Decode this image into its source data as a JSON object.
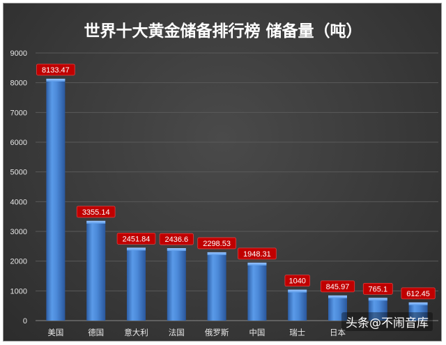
{
  "chart_data": {
    "type": "bar",
    "title": "世界十大黄金储备排行榜 储备量（吨）",
    "categories": [
      "美国",
      "德国",
      "意大利",
      "法国",
      "俄罗斯",
      "中国",
      "瑞士",
      "日本",
      "",
      ""
    ],
    "values": [
      8133.47,
      3355.14,
      2451.84,
      2436.6,
      2298.53,
      1948.31,
      1040,
      845.97,
      765.1,
      612.45
    ],
    "data_labels": [
      "8133.47",
      "3355.14",
      "2451.84",
      "2436.6",
      "2298.53",
      "1948.31",
      "1040",
      "845.97",
      "765.1",
      "612.45"
    ],
    "xlabel": "",
    "ylabel": "",
    "ylim": [
      0,
      9000
    ],
    "yticks": [
      "0",
      "1000",
      "2000",
      "3000",
      "4000",
      "5000",
      "6000",
      "7000",
      "8000",
      "9000"
    ],
    "grid": true,
    "legend": "none"
  },
  "colors": {
    "background": "#3a3a3a",
    "bar": "#4a86d8",
    "data_label_bg": "#c00000",
    "gridline": "#5a5a5a"
  },
  "watermark": "头条@不闹音库"
}
